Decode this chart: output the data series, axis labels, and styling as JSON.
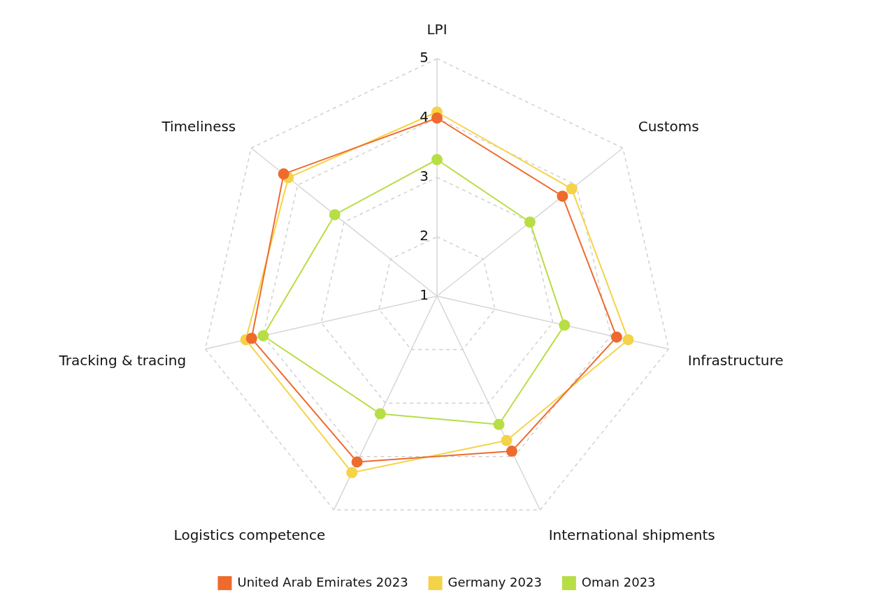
{
  "chart_data": {
    "type": "radar",
    "categories": [
      "LPI",
      "Customs",
      "Infrastructure",
      "International shipments",
      "Logistics competence",
      "Tracking & tracing",
      "Timeliness"
    ],
    "series": [
      {
        "name": "United Arab Emirates 2023",
        "color": "#ee6b2d",
        "values": [
          4.0,
          3.7,
          4.1,
          3.9,
          4.1,
          4.2,
          4.3
        ]
      },
      {
        "name": "Germany 2023",
        "color": "#f5d348",
        "values": [
          4.1,
          3.9,
          4.3,
          3.7,
          4.3,
          4.3,
          4.2
        ]
      },
      {
        "name": "Oman 2023",
        "color": "#b8de45",
        "values": [
          3.3,
          3.0,
          3.2,
          3.4,
          3.2,
          4.0,
          3.2
        ]
      }
    ],
    "ylim": [
      1,
      5
    ],
    "yticks": [
      1,
      2,
      3,
      4,
      5
    ],
    "grid": true,
    "legend": "bottom",
    "marker": "circle",
    "line_style": "solid"
  }
}
